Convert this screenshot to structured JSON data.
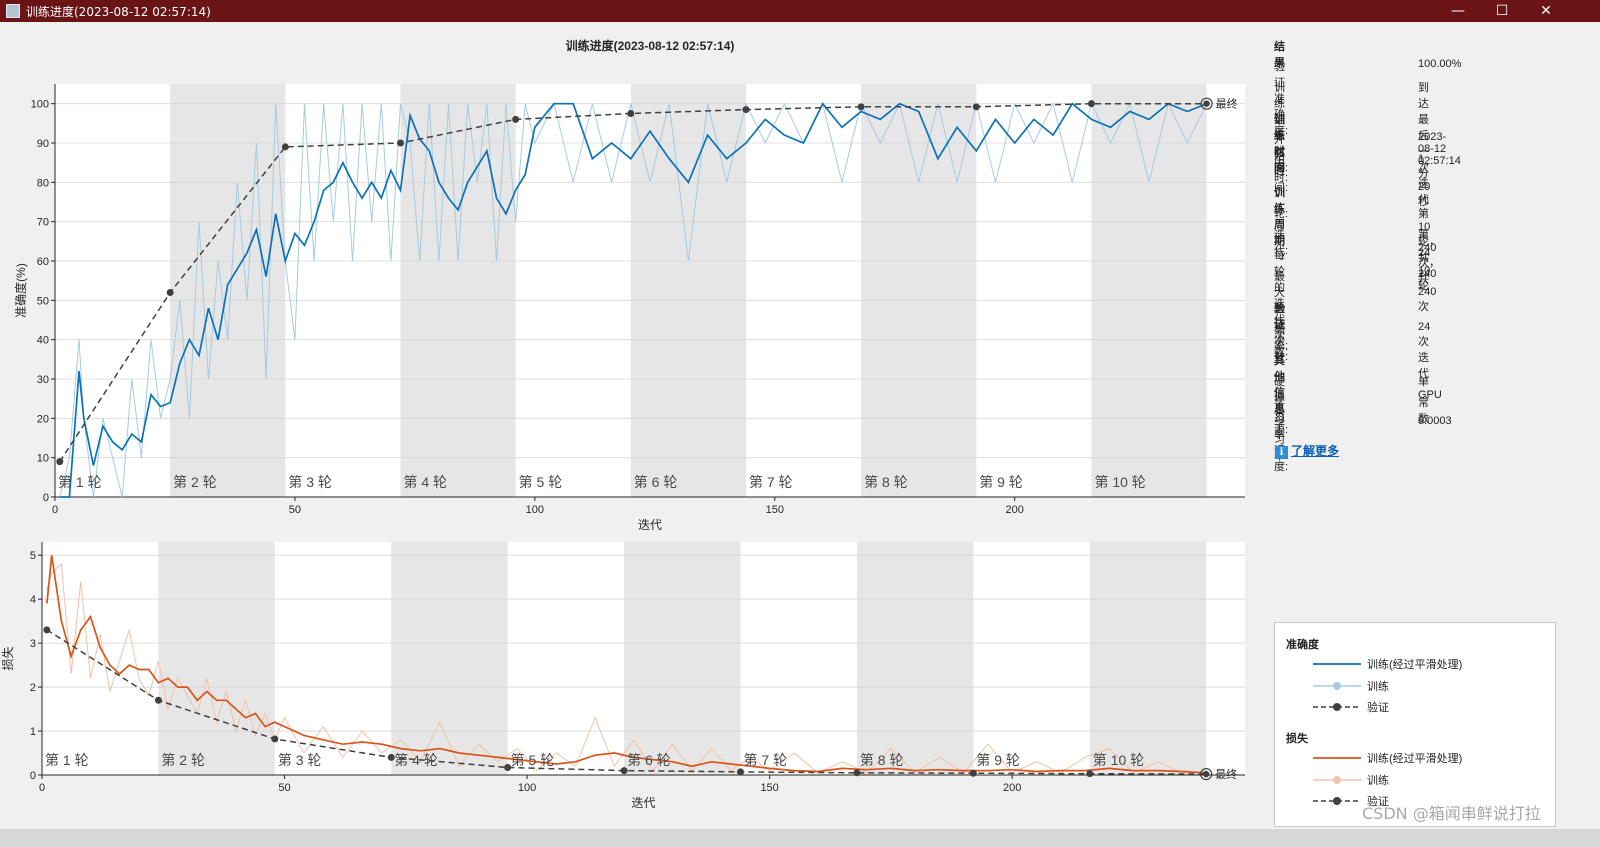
{
  "window": {
    "title": "训练进度(2023-08-12 02:57:14)",
    "buttons": {
      "minimize": "—",
      "maximize": "☐",
      "close": "✕"
    }
  },
  "colors": {
    "accuracy_smoothed": "#0b72b5",
    "accuracy_raw": "#a6cbe0",
    "loss_smoothed": "#d9541a",
    "loss_raw": "#f0c2a8",
    "validation": "#404040",
    "epoch_shade": "#e6e6e6",
    "titlebar": "#6b1416"
  },
  "side_panel": {
    "results": {
      "title": "结果",
      "rows": [
        {
          "label": "验证准确度:",
          "value": "100.00%"
        },
        {
          "label": "训练结束状态:",
          "value": "到达最后一次迭代"
        }
      ]
    },
    "time": {
      "title": "训练时间",
      "rows": [
        {
          "label": "开始时间:",
          "value": "2023-08-12 02:57:14"
        },
        {
          "label": "历时:",
          "value": "1 分 20 秒"
        }
      ]
    },
    "cycle": {
      "title": "训练周期",
      "rows": [
        {
          "label": "轮:",
          "value": "第 10 轮，共 10 轮"
        },
        {
          "label": "迭代:",
          "value": "第 240 次，共 240 次"
        },
        {
          "label": "每轮的迭代次数:",
          "value": "24"
        },
        {
          "label": "最大迭代次数:",
          "value": "240"
        }
      ]
    },
    "validation": {
      "title": "验证",
      "rows": [
        {
          "label": "频率:",
          "value": "24 次迭代"
        }
      ]
    },
    "other": {
      "title": "其他信息",
      "rows": [
        {
          "label": "硬件资源:",
          "value": "单 GPU"
        },
        {
          "label": "学习率调度:",
          "value": "常数"
        },
        {
          "label": "学习率:",
          "value": "0.0003"
        }
      ]
    },
    "learn_more": "了解更多"
  },
  "legend": {
    "accuracy_title": "准确度",
    "accuracy_items": [
      "训练(经过平滑处理)",
      "训练",
      "验证"
    ],
    "loss_title": "损失",
    "loss_items": [
      "训练(经过平滑处理)",
      "训练",
      "验证"
    ]
  },
  "watermark": "CSDN @箱闻串鲜说打拉",
  "chart_data": [
    {
      "type": "line",
      "title": "训练进度(2023-08-12 02:57:14)",
      "xlabel": "迭代",
      "ylabel": "准确度(%)",
      "xlim": [
        0,
        248
      ],
      "ylim": [
        0,
        105
      ],
      "xticks": [
        0,
        50,
        100,
        150,
        200
      ],
      "yticks": [
        0,
        10,
        20,
        30,
        40,
        50,
        60,
        70,
        80,
        90,
        100
      ],
      "grid": true,
      "epoch_labels": [
        "第 1 轮",
        "第 2 轮",
        "第 3 轮",
        "第 4 轮",
        "第 5 轮",
        "第 6 轮",
        "第 7 轮",
        "第 8 轮",
        "第 9 轮",
        "第 10 轮"
      ],
      "iterations_per_epoch": 24,
      "final_label": "最终",
      "series": [
        {
          "name": "训练(经过平滑处理)",
          "x": [
            1,
            3,
            5,
            6,
            8,
            10,
            12,
            14,
            16,
            18,
            20,
            22,
            24,
            26,
            28,
            30,
            32,
            34,
            36,
            38,
            40,
            42,
            44,
            46,
            48,
            50,
            52,
            54,
            56,
            58,
            60,
            62,
            64,
            66,
            68,
            70,
            72,
            74,
            76,
            78,
            80,
            82,
            84,
            86,
            88,
            90,
            92,
            94,
            96,
            98,
            100,
            104,
            108,
            112,
            116,
            120,
            124,
            128,
            132,
            136,
            140,
            144,
            148,
            152,
            156,
            160,
            164,
            168,
            172,
            176,
            180,
            184,
            188,
            192,
            196,
            200,
            204,
            208,
            212,
            216,
            220,
            224,
            228,
            232,
            236,
            240
          ],
          "values": [
            0,
            0,
            32,
            20,
            8,
            18,
            14,
            12,
            16,
            14,
            26,
            23,
            24,
            34,
            40,
            36,
            48,
            40,
            54,
            58,
            62,
            68,
            56,
            72,
            60,
            67,
            64,
            70,
            78,
            80,
            85,
            80,
            76,
            80,
            76,
            83,
            78,
            97,
            91,
            88,
            80,
            76,
            73,
            80,
            84,
            88,
            76,
            72,
            78,
            82,
            94,
            100,
            100,
            86,
            90,
            86,
            93,
            86,
            80,
            92,
            86,
            90,
            96,
            92,
            90,
            100,
            94,
            98,
            96,
            100,
            98,
            86,
            94,
            88,
            96,
            90,
            96,
            92,
            100,
            96,
            94,
            98,
            96,
            100,
            98,
            100
          ]
        },
        {
          "name": "训练",
          "x": [
            1,
            3,
            5,
            6,
            8,
            10,
            12,
            14,
            16,
            18,
            20,
            22,
            24,
            26,
            28,
            30,
            32,
            34,
            36,
            38,
            40,
            42,
            44,
            46,
            48,
            50,
            52,
            54,
            56,
            58,
            60,
            62,
            64,
            66,
            68,
            70,
            72,
            74,
            76,
            78,
            80,
            82,
            84,
            86,
            88,
            90,
            92,
            94,
            96,
            98,
            100,
            104,
            108,
            112,
            116,
            120,
            124,
            128,
            132,
            136,
            140,
            144,
            148,
            152,
            156,
            160,
            164,
            168,
            172,
            176,
            180,
            184,
            188,
            192,
            196,
            200,
            204,
            208,
            212,
            216,
            220,
            224,
            228,
            232,
            236,
            240
          ],
          "values": [
            0,
            10,
            40,
            20,
            0,
            20,
            10,
            0,
            30,
            10,
            40,
            20,
            30,
            50,
            20,
            70,
            30,
            60,
            40,
            80,
            50,
            90,
            30,
            100,
            60,
            40,
            100,
            60,
            100,
            70,
            100,
            60,
            100,
            70,
            100,
            60,
            100,
            90,
            60,
            100,
            60,
            100,
            60,
            100,
            80,
            100,
            60,
            100,
            70,
            100,
            90,
            100,
            80,
            100,
            80,
            100,
            80,
            100,
            60,
            100,
            80,
            100,
            90,
            100,
            90,
            100,
            80,
            100,
            90,
            100,
            80,
            100,
            80,
            100,
            80,
            100,
            90,
            100,
            80,
            100,
            90,
            100,
            80,
            100,
            90,
            100
          ]
        },
        {
          "name": "验证",
          "x": [
            1,
            24,
            48,
            72,
            96,
            120,
            144,
            168,
            192,
            216,
            240
          ],
          "values": [
            9,
            52,
            89,
            90,
            96,
            97.5,
            98.5,
            99.2,
            99.2,
            100,
            100
          ]
        }
      ]
    },
    {
      "type": "line",
      "xlabel": "迭代",
      "ylabel": "损失",
      "xlim": [
        0,
        248
      ],
      "ylim": [
        0,
        5.3
      ],
      "xticks": [
        0,
        50,
        100,
        150,
        200
      ],
      "yticks": [
        0,
        1,
        2,
        3,
        4,
        5
      ],
      "grid": true,
      "epoch_labels": [
        "第 1 轮",
        "第 2 轮",
        "第 3 轮",
        "第 4 轮",
        "第 5 轮",
        "第 6 轮",
        "第 7 轮",
        "第 8 轮",
        "第 9 轮",
        "第 10 轮"
      ],
      "iterations_per_epoch": 24,
      "final_label": "最终",
      "series": [
        {
          "name": "训练(经过平滑处理)",
          "x": [
            1,
            2,
            4,
            6,
            8,
            10,
            12,
            14,
            16,
            18,
            20,
            22,
            24,
            26,
            28,
            30,
            32,
            34,
            36,
            38,
            40,
            42,
            44,
            46,
            48,
            50,
            54,
            58,
            62,
            66,
            70,
            74,
            78,
            82,
            86,
            90,
            94,
            98,
            102,
            106,
            110,
            114,
            118,
            122,
            126,
            130,
            134,
            138,
            142,
            146,
            150,
            155,
            160,
            165,
            170,
            175,
            180,
            185,
            190,
            195,
            200,
            205,
            210,
            215,
            220,
            225,
            230,
            235,
            240
          ],
          "values": [
            3.9,
            5.0,
            3.5,
            2.7,
            3.3,
            3.6,
            2.9,
            2.5,
            2.3,
            2.5,
            2.4,
            2.4,
            2.1,
            2.2,
            2.0,
            2.0,
            1.7,
            1.9,
            1.7,
            1.7,
            1.5,
            1.3,
            1.4,
            1.1,
            1.2,
            1.1,
            0.9,
            0.8,
            0.7,
            0.75,
            0.7,
            0.6,
            0.55,
            0.6,
            0.5,
            0.45,
            0.4,
            0.35,
            0.3,
            0.25,
            0.3,
            0.45,
            0.5,
            0.4,
            0.35,
            0.3,
            0.2,
            0.3,
            0.25,
            0.2,
            0.15,
            0.1,
            0.08,
            0.15,
            0.12,
            0.15,
            0.1,
            0.12,
            0.1,
            0.1,
            0.12,
            0.08,
            0.1,
            0.1,
            0.15,
            0.1,
            0.1,
            0.08,
            0.05
          ]
        },
        {
          "name": "训练",
          "x": [
            1,
            2,
            4,
            6,
            8,
            10,
            12,
            14,
            16,
            18,
            20,
            22,
            24,
            26,
            28,
            30,
            32,
            34,
            36,
            38,
            40,
            42,
            44,
            46,
            48,
            50,
            54,
            58,
            62,
            66,
            70,
            74,
            78,
            82,
            86,
            90,
            94,
            98,
            102,
            106,
            110,
            114,
            118,
            122,
            126,
            130,
            134,
            138,
            142,
            146,
            150,
            155,
            160,
            165,
            170,
            175,
            180,
            185,
            190,
            195,
            200,
            205,
            210,
            215,
            220,
            225,
            230,
            235,
            240
          ],
          "values": [
            4.2,
            4.6,
            4.8,
            2.3,
            4.4,
            2.2,
            3.2,
            1.9,
            2.6,
            3.3,
            2.2,
            1.8,
            2.6,
            1.5,
            2.2,
            1.8,
            1.4,
            2.2,
            1.2,
            1.9,
            1.0,
            1.7,
            0.9,
            1.4,
            0.8,
            1.3,
            0.5,
            1.1,
            0.4,
            1.0,
            0.5,
            0.8,
            0.3,
            1.2,
            0.2,
            0.7,
            0.3,
            0.6,
            0.1,
            0.5,
            0.2,
            1.3,
            0.2,
            0.8,
            0.1,
            0.7,
            0.1,
            0.6,
            0.1,
            0.4,
            0.1,
            0.5,
            0.05,
            0.3,
            0.05,
            0.6,
            0.05,
            0.4,
            0.05,
            0.7,
            0.05,
            0.3,
            0.05,
            0.4,
            0.6,
            0.05,
            0.3,
            0.05,
            0.05
          ]
        },
        {
          "name": "验证",
          "x": [
            1,
            24,
            48,
            72,
            96,
            120,
            144,
            168,
            192,
            216,
            240
          ],
          "values": [
            3.3,
            1.7,
            0.82,
            0.4,
            0.17,
            0.1,
            0.07,
            0.05,
            0.04,
            0.03,
            0.02
          ]
        }
      ]
    }
  ]
}
